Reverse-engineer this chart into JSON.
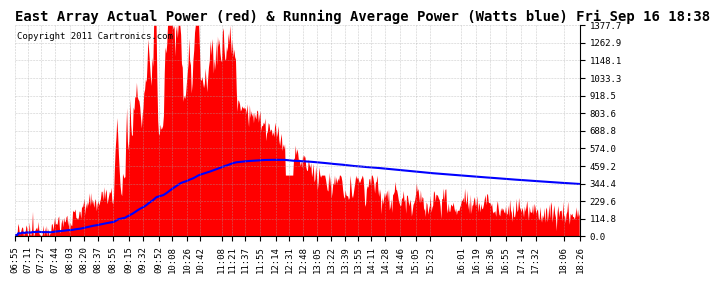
{
  "title": "East Array Actual Power (red) & Running Average Power (Watts blue) Fri Sep 16 18:38",
  "copyright": "Copyright 2011 Cartronics.com",
  "ymin": 0.0,
  "ymax": 1377.7,
  "yticks": [
    0.0,
    114.8,
    229.6,
    344.4,
    459.2,
    574.0,
    688.8,
    803.6,
    918.5,
    1033.3,
    1148.1,
    1262.9,
    1377.7
  ],
  "xtick_labels": [
    "06:55",
    "07:11",
    "07:27",
    "07:44",
    "08:03",
    "08:20",
    "08:37",
    "08:55",
    "09:15",
    "09:32",
    "09:52",
    "10:08",
    "10:26",
    "10:42",
    "11:08",
    "11:21",
    "11:37",
    "11:55",
    "12:14",
    "12:31",
    "12:48",
    "13:05",
    "13:22",
    "13:39",
    "13:55",
    "14:11",
    "14:28",
    "14:46",
    "15:05",
    "15:23",
    "16:01",
    "16:19",
    "16:36",
    "16:55",
    "17:14",
    "17:32",
    "18:06",
    "18:26"
  ],
  "background_color": "#ffffff",
  "actual_color": "#ff0000",
  "average_color": "#0000ff",
  "grid_color": "#aaaaaa",
  "title_fontsize": 10,
  "copyright_fontsize": 6.5,
  "tick_fontsize": 6.5
}
